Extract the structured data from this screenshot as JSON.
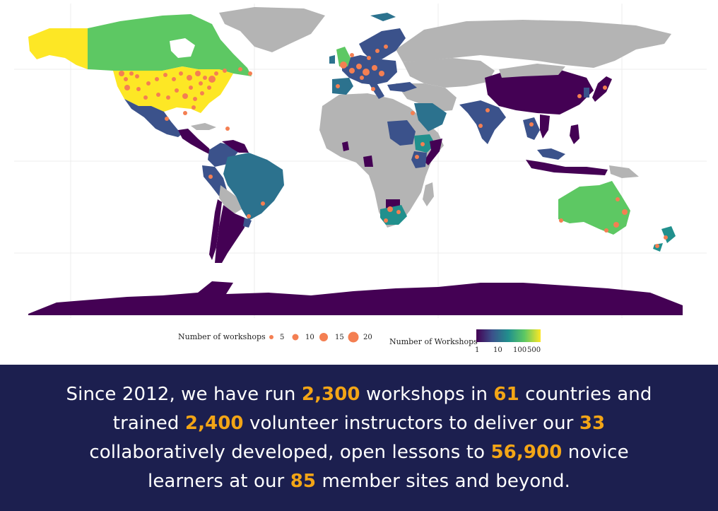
{
  "legend": {
    "size_title": "Number of workshops",
    "size_items": [
      "5",
      "10",
      "15",
      "20"
    ],
    "color_title": "Number of Workshops",
    "color_ticks": [
      "1",
      "10",
      "100",
      "500"
    ],
    "color_stops": [
      "#440154",
      "#3b528b",
      "#21908d",
      "#5dc863",
      "#fde725"
    ]
  },
  "colors": {
    "no_data": "#b4b4b4",
    "dot": "#f47f52",
    "banner_bg": "#1c1f4f",
    "highlight": "#f3a516"
  },
  "banner": {
    "t1": "Since 2012, we have run ",
    "v1": "2,300",
    "t2": " workshops in ",
    "v2": "61",
    "t3": " countries and trained ",
    "v3": "2,400",
    "t4": " volunteer instructors to deliver our ",
    "v4": "33",
    "t5": " collaboratively developed, open lessons to ",
    "v5": "56,900",
    "t6": " novice learners at our ",
    "v6": "85",
    "t7": " member sites and beyond."
  }
}
